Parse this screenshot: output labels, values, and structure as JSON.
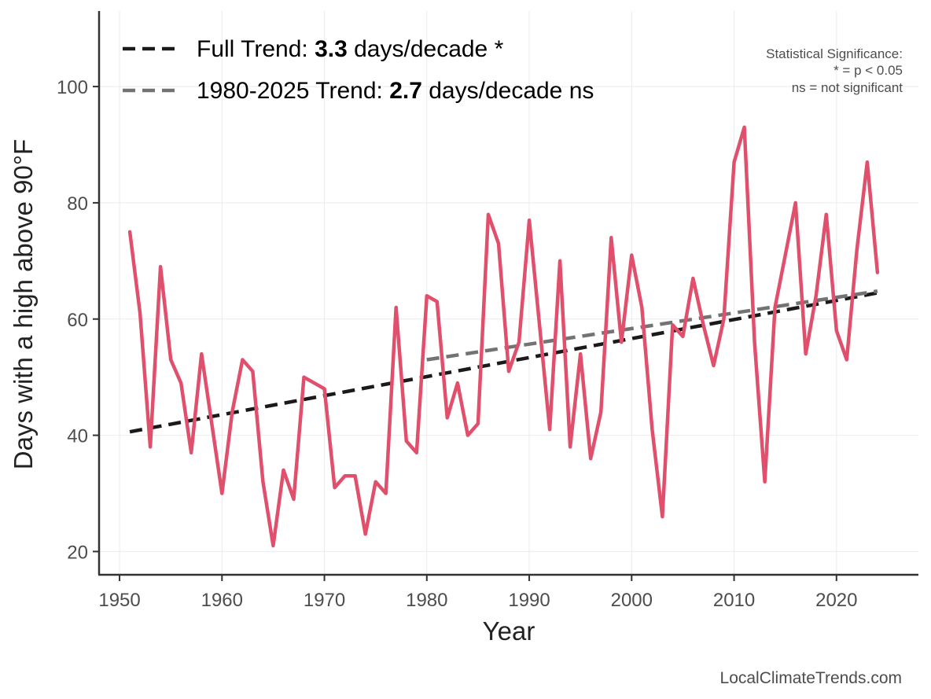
{
  "chart_data": {
    "type": "line",
    "xlabel": "Year",
    "ylabel": "Days with a high above 90°F",
    "xlim": [
      1948,
      2028
    ],
    "ylim": [
      16,
      113
    ],
    "xticks": [
      1950,
      1960,
      1970,
      1980,
      1990,
      2000,
      2010,
      2020
    ],
    "yticks": [
      20,
      40,
      60,
      80,
      100
    ],
    "grid": true,
    "series": [
      {
        "name": "Days above 90°F",
        "color": "#e0506c",
        "x": [
          1951,
          1952,
          1953,
          1954,
          1955,
          1956,
          1957,
          1958,
          1959,
          1960,
          1961,
          1962,
          1963,
          1964,
          1965,
          1966,
          1967,
          1968,
          1969,
          1970,
          1971,
          1972,
          1973,
          1974,
          1975,
          1976,
          1977,
          1978,
          1979,
          1980,
          1981,
          1982,
          1983,
          1984,
          1985,
          1986,
          1987,
          1988,
          1989,
          1990,
          1991,
          1992,
          1993,
          1994,
          1995,
          1996,
          1997,
          1998,
          1999,
          2000,
          2001,
          2002,
          2003,
          2004,
          2005,
          2006,
          2007,
          2008,
          2009,
          2010,
          2011,
          2012,
          2013,
          2014,
          2015,
          2016,
          2017,
          2018,
          2019,
          2020,
          2021,
          2022,
          2023,
          2024
        ],
        "values": [
          75,
          61,
          38,
          69,
          53,
          49,
          37,
          54,
          42,
          30,
          44,
          53,
          51,
          32,
          21,
          34,
          29,
          50,
          49,
          48,
          31,
          33,
          33,
          23,
          32,
          30,
          62,
          39,
          37,
          64,
          63,
          43,
          49,
          40,
          42,
          78,
          73,
          51,
          56,
          77,
          59,
          41,
          70,
          38,
          54,
          36,
          44,
          74,
          56,
          71,
          62,
          41,
          26,
          59,
          57,
          67,
          59,
          52,
          60,
          87,
          93,
          56,
          32,
          62,
          71,
          80,
          54,
          64,
          78,
          58,
          53,
          72,
          87,
          68
        ]
      }
    ],
    "trends": [
      {
        "name": "Full Trend",
        "color": "#1a1a1a",
        "x": [
          1951,
          2024
        ],
        "y": [
          40.6,
          64.5
        ],
        "label_prefix": "Full Trend: ",
        "label_value": "3.3",
        "label_suffix": " days/decade *"
      },
      {
        "name": "1980-2025 Trend",
        "color": "#737373",
        "x": [
          1980,
          2024
        ],
        "y": [
          53.0,
          64.8
        ],
        "label_prefix": "1980-2025 Trend: ",
        "label_value": "2.7",
        "label_suffix": " days/decade ns"
      }
    ],
    "annotations": {
      "significance_lines": [
        "Statistical Significance:",
        "* = p < 0.05",
        "ns = not significant"
      ],
      "source": "LocalClimateTrends.com"
    }
  }
}
